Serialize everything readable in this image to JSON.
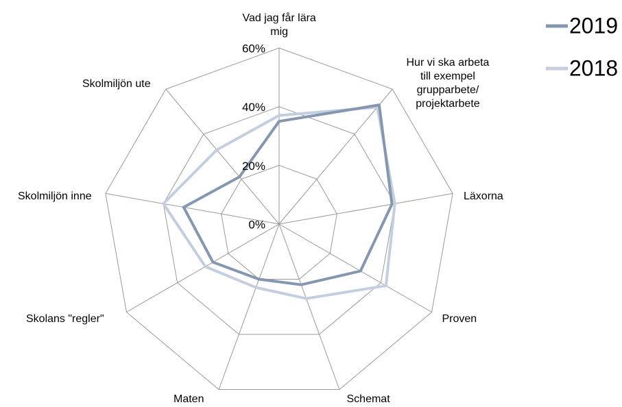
{
  "chart_data": {
    "type": "radar",
    "categories": [
      "Vad jag får lära\nmig",
      "Hur vi ska arbeta\ntill exempel\ngrupparbete/\nprojektarbete",
      "Läxorna",
      "Proven",
      "Schemat",
      "Maten",
      "Skolans \"regler\"",
      "Skolmiljön inne",
      "Skolmiljön ute"
    ],
    "series": [
      {
        "name": "2019",
        "color": "#8497b0",
        "values": [
          35,
          53,
          39,
          32,
          22,
          20,
          26,
          33,
          21
        ]
      },
      {
        "name": "2018",
        "color": "#c3cede",
        "values": [
          37,
          52,
          40,
          42,
          27,
          23,
          29,
          40,
          33
        ]
      }
    ],
    "ylim": [
      0,
      60
    ],
    "yticks": [
      {
        "value": 0,
        "label": "0%"
      },
      {
        "value": 20,
        "label": "20%"
      },
      {
        "value": 40,
        "label": "40%"
      },
      {
        "value": 60,
        "label": "60%"
      }
    ],
    "grid": true,
    "legend": "top-right"
  }
}
